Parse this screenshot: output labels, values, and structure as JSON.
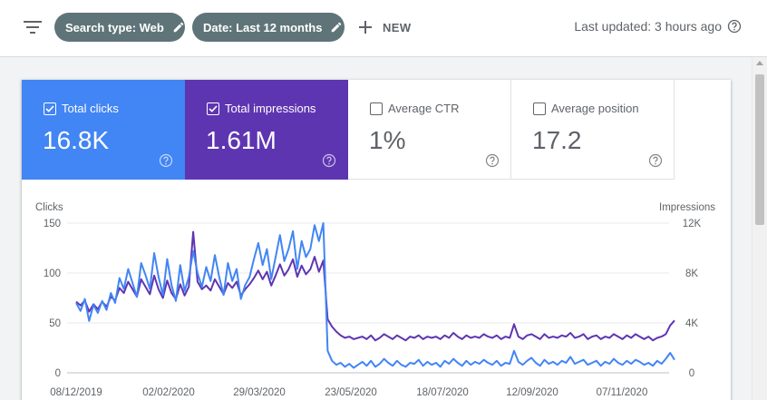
{
  "toolbar": {
    "filter_icon": "filter-list-icon",
    "chips": [
      {
        "label": "Search type: Web",
        "icon": "edit-pencil-icon"
      },
      {
        "label": "Date: Last 12 months",
        "icon": "edit-pencil-icon"
      }
    ],
    "new_label": "NEW",
    "last_updated": "Last updated: 3 hours ago"
  },
  "metrics": [
    {
      "label": "Total clicks",
      "value": "16.8K",
      "checked": true,
      "color": "#4285f4"
    },
    {
      "label": "Total impressions",
      "value": "1.61M",
      "checked": true,
      "color": "#5e35b1"
    },
    {
      "label": "Average CTR",
      "value": "1%",
      "checked": false
    },
    {
      "label": "Average position",
      "value": "17.2",
      "checked": false
    }
  ],
  "chart_data": {
    "type": "line",
    "left_axis_label": "Clicks",
    "right_axis_label": "Impressions",
    "left_ticks": [
      "150",
      "100",
      "50",
      "0"
    ],
    "right_ticks": [
      "12K",
      "8K",
      "4K",
      "0"
    ],
    "left_range": [
      0,
      150
    ],
    "right_range": [
      0,
      12000
    ],
    "x_ticks": [
      "08/12/2019",
      "02/02/2020",
      "29/03/2020",
      "23/05/2020",
      "18/07/2020",
      "12/09/2020",
      "07/11/2020"
    ],
    "grid": true,
    "series": [
      {
        "name": "Total clicks",
        "axis": "left",
        "color": "#4285f4",
        "values": [
          70,
          62,
          74,
          52,
          68,
          60,
          72,
          63,
          80,
          70,
          95,
          84,
          104,
          90,
          76,
          110,
          98,
          84,
          120,
          96,
          78,
          114,
          88,
          72,
          108,
          82,
          96,
          122,
          100,
          86,
          106,
          92,
          118,
          96,
          78,
          110,
          92,
          104,
          74,
          88,
          96,
          114,
          130,
          108,
          124,
          94,
          116,
          138,
          112,
          124,
          142,
          104,
          132,
          116,
          124,
          148,
          132,
          150,
          22,
          12,
          8,
          10,
          6,
          9,
          5,
          8,
          11,
          7,
          12,
          6,
          9,
          14,
          10,
          7,
          12,
          8,
          6,
          10,
          9,
          13,
          7,
          11,
          8,
          10,
          6,
          12,
          9,
          14,
          10,
          7,
          12,
          8,
          11,
          9,
          13,
          10,
          8,
          12,
          7,
          10,
          9,
          22,
          11,
          8,
          12,
          15,
          10,
          7,
          13,
          9,
          11,
          8,
          12,
          10,
          16,
          9,
          11,
          13,
          8,
          10,
          12,
          7,
          11,
          9,
          14,
          10,
          8,
          12,
          9,
          13,
          11,
          8,
          10,
          7,
          12,
          9,
          14,
          20,
          13
        ]
      },
      {
        "name": "Total impressions",
        "axis": "right",
        "color": "#5e35b1",
        "values": [
          5700,
          5400,
          5800,
          4900,
          5500,
          5100,
          5700,
          5300,
          6100,
          5800,
          6800,
          6400,
          7300,
          6700,
          6100,
          7500,
          6900,
          6300,
          7800,
          6700,
          6000,
          7400,
          6400,
          5900,
          7100,
          6200,
          6900,
          11300,
          7300,
          6700,
          7000,
          6600,
          7500,
          6900,
          6300,
          7200,
          6800,
          7300,
          6200,
          6700,
          7100,
          7600,
          8200,
          7500,
          8100,
          7000,
          7800,
          8700,
          7800,
          8300,
          9100,
          7700,
          8600,
          7900,
          8300,
          9300,
          8100,
          9000,
          4300,
          3700,
          3300,
          3000,
          2800,
          2900,
          2700,
          2800,
          2900,
          2700,
          3000,
          2600,
          2800,
          3100,
          2900,
          2700,
          3000,
          2800,
          2600,
          2900,
          2800,
          3000,
          2700,
          2900,
          2800,
          2900,
          2700,
          3000,
          2800,
          3200,
          2900,
          2700,
          3000,
          2800,
          2900,
          2800,
          3100,
          2900,
          2800,
          3000,
          2700,
          2900,
          2800,
          3900,
          2900,
          2700,
          3000,
          3100,
          2900,
          2700,
          3100,
          2800,
          2900,
          2800,
          3000,
          2900,
          3200,
          2800,
          2900,
          3100,
          2700,
          2900,
          3000,
          2700,
          2900,
          2800,
          3100,
          2900,
          2700,
          3000,
          2800,
          3100,
          2900,
          2700,
          2900,
          2600,
          2800,
          2900,
          3100,
          3800,
          4200
        ]
      }
    ]
  }
}
